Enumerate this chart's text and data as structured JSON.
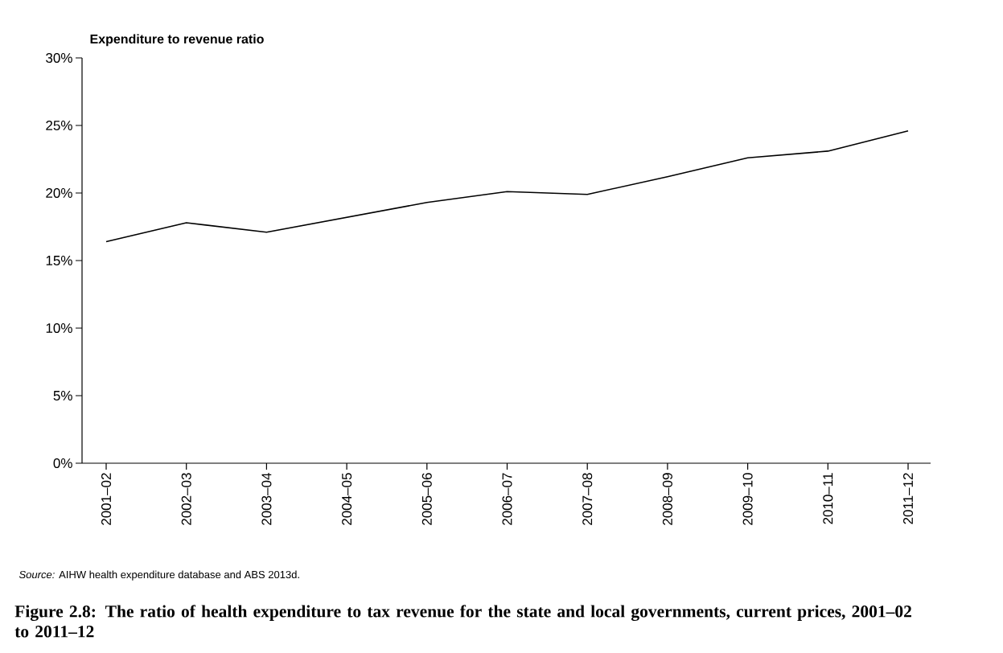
{
  "chart_data": {
    "type": "line",
    "title": "Figure 2.8: The ratio of health expenditure to tax revenue for the state and local governments, current prices, 2001–02 to 2011–12",
    "ylabel": "Expenditure to revenue ratio",
    "annotations": [
      "*Source:* AIHW health expenditure database and ABS 2013d."
    ],
    "categories": [
      "2001–02",
      "2002–03",
      "2003–04",
      "2004–05",
      "2005–06",
      "2006–07",
      "2007–08",
      "2008–09",
      "2009–10",
      "2010–11",
      "2011–12"
    ],
    "series": [
      {
        "color": "#000000",
        "values": [
          16.4,
          17.8,
          17.1,
          18.2,
          19.3,
          20.1,
          19.9,
          21.2,
          22.6,
          23.1,
          24.6
        ]
      }
    ],
    "ylim": [
      0,
      30
    ],
    "yticks": [
      {
        "value": 0,
        "label": "0%"
      },
      {
        "value": 5,
        "label": "5%"
      },
      {
        "value": 10,
        "label": "10%"
      },
      {
        "value": 15,
        "label": "15%"
      },
      {
        "value": 20,
        "label": "20%"
      },
      {
        "value": 25,
        "label": "25%"
      },
      {
        "value": 30,
        "label": "30%"
      }
    ],
    "marker": "none",
    "line_style": "solid"
  }
}
